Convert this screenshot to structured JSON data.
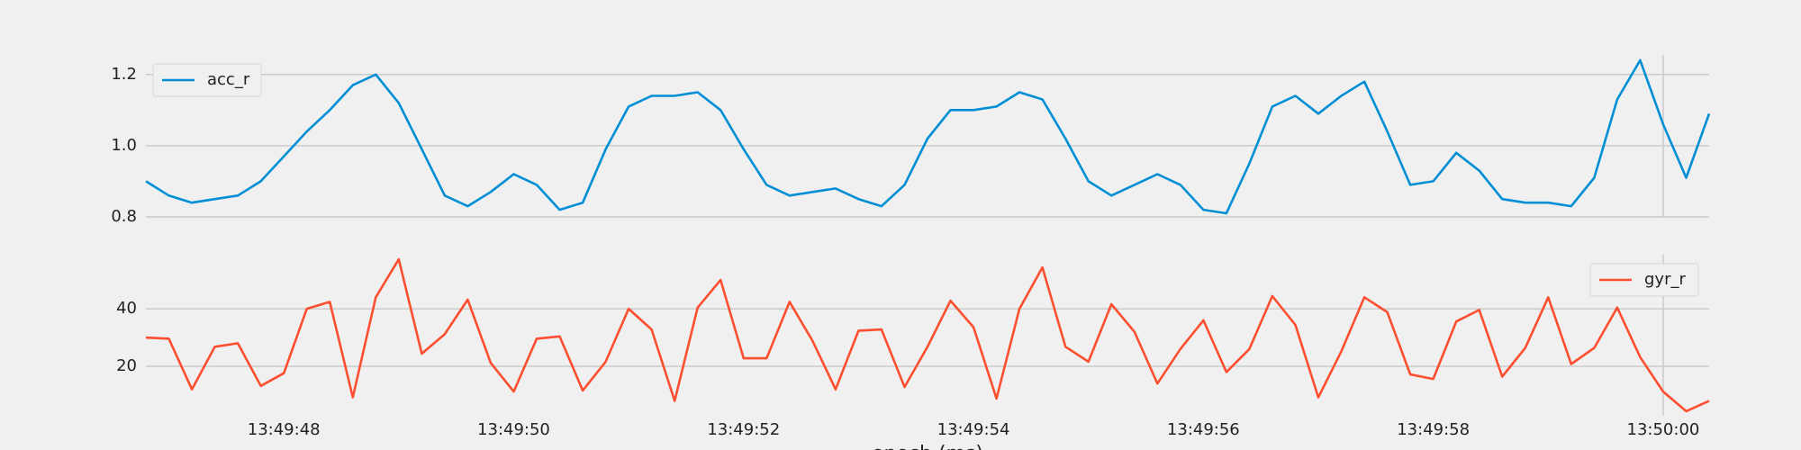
{
  "chart_data": [
    {
      "type": "line",
      "x": [
        49786.8,
        49787,
        49787.2,
        49787.4,
        49787.6,
        49787.8,
        49788,
        49788.2,
        49788.4,
        49788.6,
        49788.8,
        49789,
        49789.2,
        49789.4,
        49789.6,
        49789.8,
        49790,
        49790.2,
        49790.4,
        49790.6,
        49790.8,
        49791,
        49791.2,
        49791.4,
        49791.6,
        49791.8,
        49792,
        49792.2,
        49792.4,
        49792.6,
        49792.8,
        49793,
        49793.2,
        49793.4,
        49793.6,
        49793.8,
        49794,
        49794.2,
        49794.4,
        49794.6,
        49794.8,
        49795,
        49795.2,
        49795.4,
        49795.6,
        49795.8,
        49796,
        49796.2,
        49796.4,
        49796.6,
        49796.8,
        49797,
        49797.2,
        49797.4,
        49797.6,
        49797.8,
        49798,
        49798.2,
        49798.4,
        49798.6,
        49798.8,
        49799,
        49799.2,
        49799.4,
        49799.6,
        49799.8,
        49800,
        49800.2,
        49800.4
      ],
      "series": [
        {
          "name": "acc_r",
          "color": "#008fd5",
          "values": [
            0.9,
            0.86,
            0.84,
            0.85,
            0.86,
            0.9,
            0.97,
            1.04,
            1.1,
            1.17,
            1.2,
            1.12,
            0.99,
            0.86,
            0.83,
            0.87,
            0.92,
            0.89,
            0.82,
            0.84,
            0.99,
            1.11,
            1.14,
            1.14,
            1.15,
            1.1,
            0.99,
            0.89,
            0.86,
            0.87,
            0.88,
            0.85,
            0.83,
            0.89,
            1.02,
            1.1,
            1.1,
            1.11,
            1.15,
            1.13,
            1.02,
            0.9,
            0.86,
            0.89,
            0.92,
            0.89,
            0.82,
            0.81,
            0.95,
            1.11,
            1.14,
            1.09,
            1.14,
            1.18,
            1.04,
            0.89,
            0.9,
            0.98,
            0.93,
            0.85,
            0.84,
            0.84,
            0.83,
            0.91,
            1.13,
            1.24,
            1.06,
            0.91,
            1.09
          ]
        }
      ],
      "xlim": [
        49786.8,
        49800.4
      ],
      "ylim": [
        0.8,
        1.255
      ],
      "yticks": [
        {
          "value": 0.8,
          "label": "0.8"
        },
        {
          "value": 1.0,
          "label": "1.0"
        },
        {
          "value": 1.2,
          "label": "1.2"
        }
      ],
      "grid": true,
      "legend": "upper left",
      "vline": 49800
    },
    {
      "type": "line",
      "x": [
        49786.8,
        49787,
        49787.2,
        49787.4,
        49787.6,
        49787.8,
        49788,
        49788.2,
        49788.4,
        49788.6,
        49788.8,
        49789,
        49789.2,
        49789.4,
        49789.6,
        49789.8,
        49790,
        49790.2,
        49790.4,
        49790.6,
        49790.8,
        49791,
        49791.2,
        49791.4,
        49791.6,
        49791.8,
        49792,
        49792.2,
        49792.4,
        49792.6,
        49792.8,
        49793,
        49793.2,
        49793.4,
        49793.6,
        49793.8,
        49794,
        49794.2,
        49794.4,
        49794.6,
        49794.8,
        49795,
        49795.2,
        49795.4,
        49795.6,
        49795.8,
        49796,
        49796.2,
        49796.4,
        49796.6,
        49796.8,
        49797,
        49797.2,
        49797.4,
        49797.6,
        49797.8,
        49798,
        49798.2,
        49798.4,
        49798.6,
        49798.8,
        49799,
        49799.2,
        49799.4,
        49799.6,
        49799.8,
        49800,
        49800.2,
        49800.4
      ],
      "series": [
        {
          "name": "gyr_r",
          "color": "#fc4f30",
          "values": [
            30,
            29.6,
            12,
            26.8,
            28,
            13.2,
            17.6,
            40,
            42.4,
            9.2,
            44,
            57.2,
            24.4,
            31.2,
            43.2,
            21.2,
            11.2,
            29.6,
            30.4,
            11.6,
            21.6,
            40,
            32.8,
            8,
            40.4,
            50,
            22.8,
            22.8,
            42.4,
            28.8,
            12,
            32.4,
            32.8,
            12.8,
            26.8,
            42.8,
            33.6,
            8.8,
            40,
            54.4,
            26.8,
            21.6,
            41.6,
            32,
            14,
            26,
            36,
            18,
            26,
            44.4,
            34.4,
            9.2,
            25.2,
            44,
            38.8,
            17.2,
            15.6,
            35.6,
            39.6,
            16.4,
            26.4,
            44,
            20.8,
            26.4,
            40.4,
            23.2,
            11.2,
            4.4,
            8
          ]
        }
      ],
      "xlim": [
        49786.8,
        49800.4
      ],
      "ylim": [
        2.8,
        58.8
      ],
      "yticks": [
        20,
        40
      ],
      "xticks": [
        {
          "value": 49788,
          "label": "13:49:48"
        },
        {
          "value": 49790,
          "label": "13:49:50"
        },
        {
          "value": 49792,
          "label": "13:49:52"
        },
        {
          "value": 49794,
          "label": "13:49:54"
        },
        {
          "value": 49796,
          "label": "13:49:56"
        },
        {
          "value": 49798,
          "label": "13:49:58"
        },
        {
          "value": 49800,
          "label": "13:50:00"
        }
      ],
      "xlabel": "epoch (ms)",
      "grid": true,
      "legend": "upper right",
      "vline": 49800
    }
  ]
}
